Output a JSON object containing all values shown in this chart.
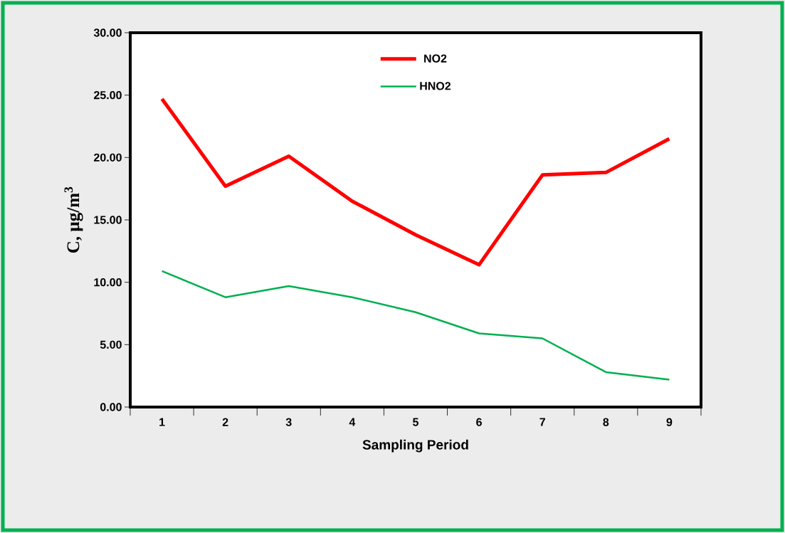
{
  "chart_data": {
    "type": "line",
    "xlabel": "Sampling Period",
    "ylabel": "C, µg/m$^{3}$",
    "categories": [
      "1",
      "2",
      "3",
      "4",
      "5",
      "6",
      "7",
      "8",
      "9"
    ],
    "series": [
      {
        "name": "NO2",
        "color": "#ff0000",
        "values": [
          24.7,
          17.7,
          20.1,
          16.5,
          13.8,
          11.4,
          18.6,
          18.8,
          21.5
        ]
      },
      {
        "name": "HNO2",
        "color": "#00b050",
        "values": [
          10.9,
          8.8,
          9.7,
          8.8,
          7.6,
          5.9,
          5.5,
          2.8,
          2.2
        ]
      }
    ],
    "ylim": [
      0,
      30
    ],
    "yticks": [
      {
        "value": 0,
        "label": "0.00"
      },
      {
        "value": 5,
        "label": "5.00"
      },
      {
        "value": 10,
        "label": "10.00"
      },
      {
        "value": 15,
        "label": "15.00"
      },
      {
        "value": 20,
        "label": "20.00"
      },
      {
        "value": 25,
        "label": "25.00"
      },
      {
        "value": 30,
        "label": "30.00"
      }
    ],
    "grid": false,
    "legend": "top"
  }
}
